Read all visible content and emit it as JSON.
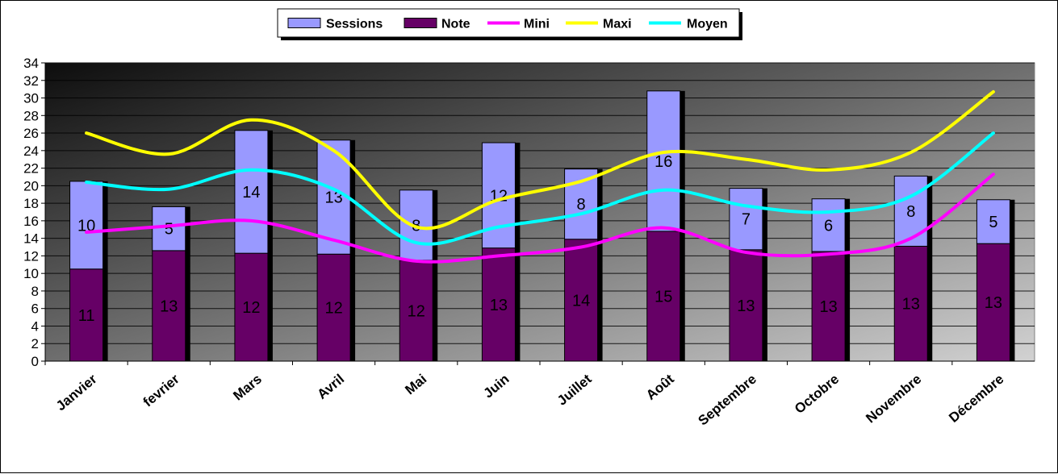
{
  "chart_data": {
    "type": "bar",
    "stacked": true,
    "categories": [
      "Janvier",
      "fevrier",
      "Mars",
      "Avril",
      "Mai",
      "Juin",
      "Juillet",
      "Août",
      "Septembre",
      "Octobre",
      "Novembre",
      "Décembre"
    ],
    "bar_series": [
      {
        "name": "Note",
        "values": [
          10.5,
          12.6,
          12.3,
          12.2,
          11.5,
          12.9,
          13.9,
          14.8,
          12.7,
          12.5,
          13.1,
          13.4
        ],
        "labels": [
          "11",
          "13",
          "12",
          "12",
          "12",
          "13",
          "14",
          "15",
          "13",
          "13",
          "13",
          "13"
        ],
        "color": "#660066"
      },
      {
        "name": "Sessions",
        "values": [
          10.0,
          5.0,
          14.0,
          13.0,
          8.0,
          12.0,
          8.0,
          16.0,
          7.0,
          6.0,
          8.0,
          5.0
        ],
        "labels": [
          "10",
          "5",
          "14",
          "13",
          "8",
          "12",
          "8",
          "16",
          "7",
          "6",
          "8",
          "5"
        ],
        "color": "#9999ff"
      }
    ],
    "line_series": [
      {
        "name": "Mini",
        "values": [
          14.7,
          15.4,
          16.0,
          13.8,
          11.4,
          12.0,
          13.0,
          15.2,
          12.4,
          12.2,
          14.0,
          21.3
        ],
        "color": "#ff00ff"
      },
      {
        "name": "Maxi",
        "values": [
          26.0,
          23.6,
          27.5,
          24.0,
          15.3,
          18.4,
          20.5,
          23.8,
          23.0,
          21.8,
          23.8,
          30.7
        ],
        "color": "#ffff00"
      },
      {
        "name": "Moyen",
        "values": [
          20.4,
          19.6,
          21.8,
          19.6,
          13.5,
          15.3,
          16.8,
          19.5,
          17.7,
          17.0,
          18.8,
          26.0
        ],
        "color": "#00ffff"
      }
    ],
    "legend": [
      "Sessions",
      "Note",
      "Mini",
      "Maxi",
      "Moyen"
    ],
    "yticks": [
      "0",
      "2",
      "4",
      "6",
      "8",
      "10",
      "12",
      "14",
      "16",
      "18",
      "20",
      "22",
      "24",
      "26",
      "28",
      "30",
      "32",
      "34"
    ],
    "ylim": [
      0,
      34
    ],
    "grid": true,
    "legend_position": "top"
  }
}
